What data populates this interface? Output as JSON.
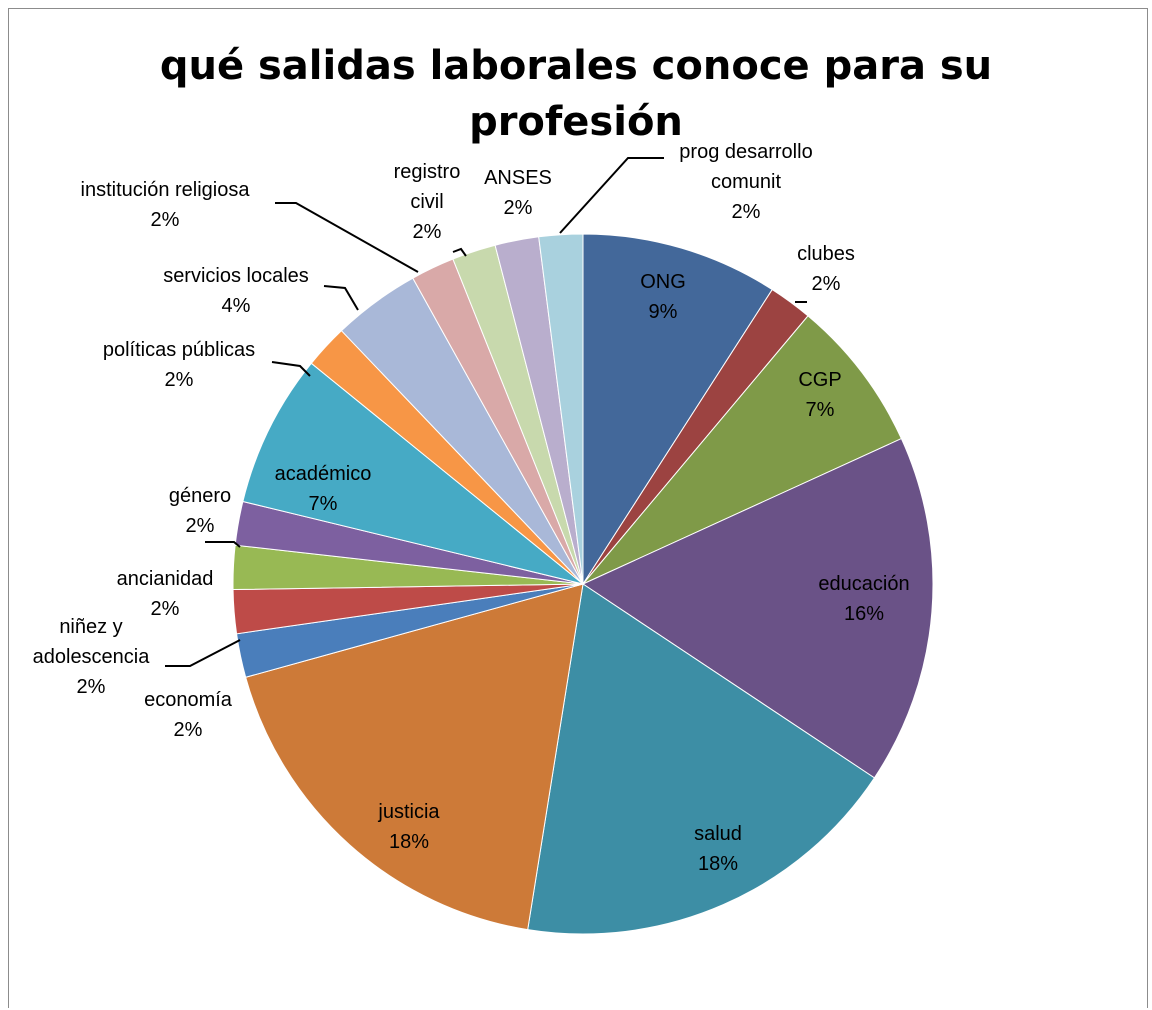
{
  "chart_data": {
    "type": "pie",
    "title": "qué salidas laborales conoce para su profesión",
    "title_lines": [
      "qué salidas laborales conoce para su",
      "profesión"
    ],
    "slices": [
      {
        "label": "ONG",
        "lines": [
          "ONG"
        ],
        "value": 9,
        "value_label": "9%",
        "color": "#43689a"
      },
      {
        "label": "clubes",
        "lines": [
          "clubes"
        ],
        "value": 2,
        "value_label": "2%",
        "color": "#9c4341"
      },
      {
        "label": "CGP",
        "lines": [
          "CGP"
        ],
        "value": 7,
        "value_label": "7%",
        "color": "#7f9a48"
      },
      {
        "label": "educación",
        "lines": [
          "educación"
        ],
        "value": 16,
        "value_label": "16%",
        "color": "#6a5287"
      },
      {
        "label": "salud",
        "lines": [
          "salud"
        ],
        "value": 18,
        "value_label": "18%",
        "color": "#3d8ea5"
      },
      {
        "label": "justicia",
        "lines": [
          "justicia"
        ],
        "value": 18,
        "value_label": "18%",
        "color": "#cd7a38"
      },
      {
        "label": "economía",
        "lines": [
          "economía"
        ],
        "value": 2,
        "value_label": "2%",
        "color": "#4a7ebb"
      },
      {
        "label": "niñez y adolescencia",
        "lines": [
          "niñez y",
          "adolescencia"
        ],
        "value": 2,
        "value_label": "2%",
        "color": "#be4b48"
      },
      {
        "label": "ancianidad",
        "lines": [
          "ancianidad"
        ],
        "value": 2,
        "value_label": "2%",
        "color": "#98b954"
      },
      {
        "label": "género",
        "lines": [
          "género"
        ],
        "value": 2,
        "value_label": "2%",
        "color": "#7d60a0"
      },
      {
        "label": "académico",
        "lines": [
          "académico"
        ],
        "value": 7,
        "value_label": "7%",
        "color": "#46aac5"
      },
      {
        "label": "políticas públicas",
        "lines": [
          "políticas públicas"
        ],
        "value": 2,
        "value_label": "2%",
        "color": "#f79646"
      },
      {
        "label": "servicios locales",
        "lines": [
          "servicios locales"
        ],
        "value": 4,
        "value_label": "4%",
        "color": "#a9b8d8"
      },
      {
        "label": "institución religiosa",
        "lines": [
          "institución religiosa"
        ],
        "value": 2,
        "value_label": "2%",
        "color": "#d9a9a8"
      },
      {
        "label": "registro civil",
        "lines": [
          "registro",
          "civil"
        ],
        "value": 2,
        "value_label": "2%",
        "color": "#c8d9ad"
      },
      {
        "label": "ANSES",
        "lines": [
          "ANSES"
        ],
        "value": 2,
        "value_label": "2%",
        "color": "#b9aecd"
      },
      {
        "label": "prog desarrollo comunit",
        "lines": [
          "prog desarrollo",
          "comunit"
        ],
        "value": 2,
        "value_label": "2%",
        "color": "#a9d1de"
      }
    ],
    "legend": "none"
  }
}
